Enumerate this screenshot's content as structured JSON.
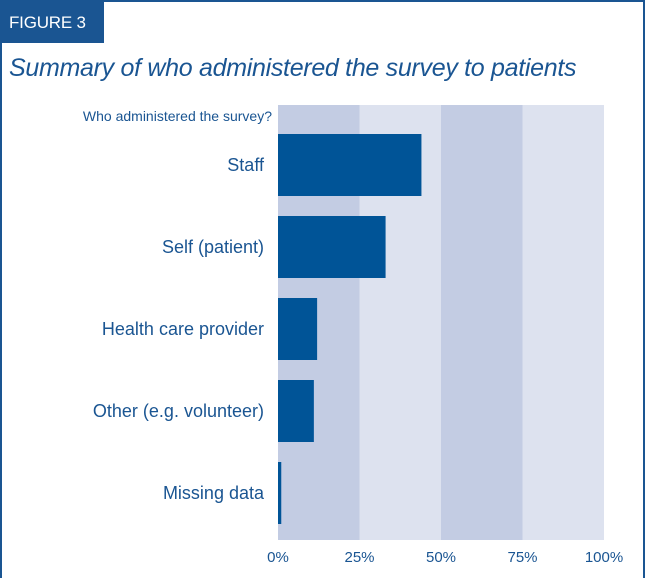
{
  "figure_label": "FIGURE 3",
  "title": "Summary of who administered the survey to patients",
  "colors": {
    "bar": "#005497",
    "band_dark": "#c3cce3",
    "band_light": "#dde2ef",
    "text": "#1a5592"
  },
  "chart_data": {
    "type": "bar",
    "orientation": "horizontal",
    "ylabel": "Who administered the survey?",
    "categories": [
      "Staff",
      "Self (patient)",
      "Health care provider",
      "Other (e.g. volunteer)",
      "Missing data"
    ],
    "values": [
      44,
      33,
      12,
      11,
      1
    ],
    "unit": "%",
    "xlim": [
      0,
      100
    ],
    "ticks": [
      0,
      25,
      50,
      75,
      100
    ],
    "tick_labels": [
      "0%",
      "25%",
      "50%",
      "75%",
      "100%"
    ],
    "legend": "none"
  }
}
